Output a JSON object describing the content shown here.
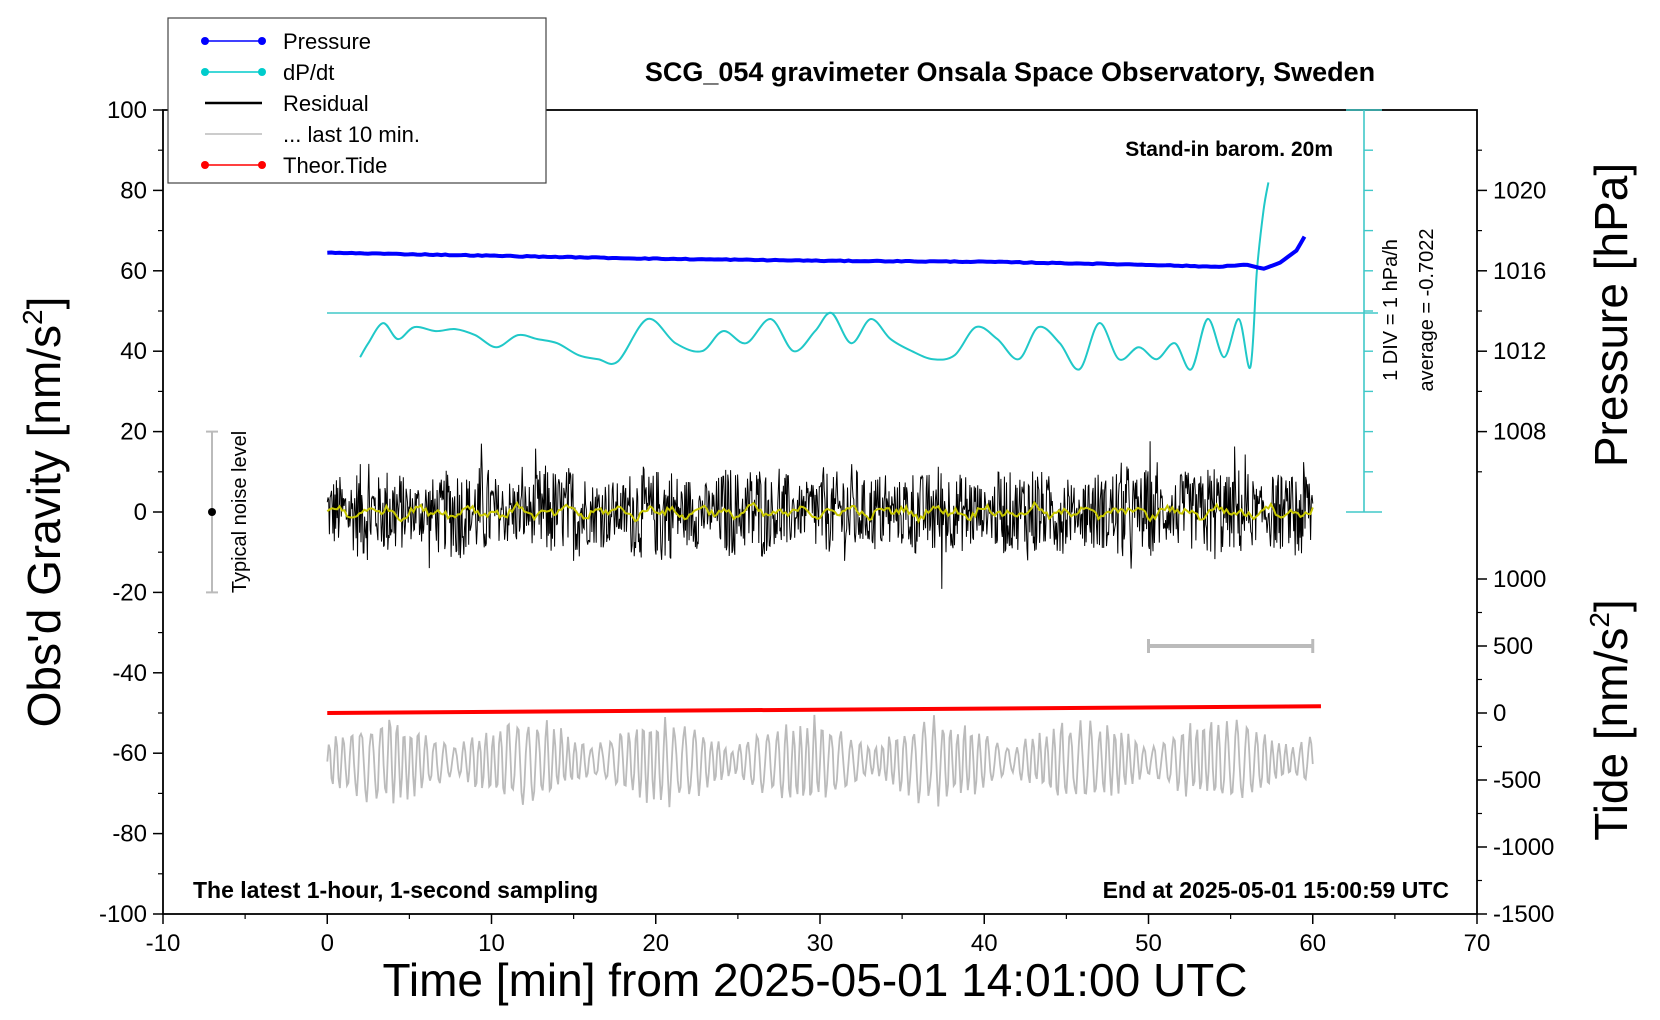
{
  "chart_data": {
    "type": "line",
    "title": "SCG_054 gravimeter Onsala Space Observatory, Sweden",
    "xlabel": "Time [min] from 2025-05-01 14:01:00 UTC",
    "xlim": [
      -10,
      70
    ],
    "x_ticks": [
      "-10",
      "0",
      "10",
      "20",
      "30",
      "40",
      "50",
      "60",
      "70"
    ],
    "left_axis": {
      "label_main": "Obs'd Gravity [nm/s",
      "label_sup": "2",
      "label_end": "]",
      "ylim": [
        -100,
        100
      ],
      "ticks": [
        "100",
        "80",
        "60",
        "40",
        "20",
        "0",
        "-20",
        "-40",
        "-60",
        "-80",
        "-100"
      ]
    },
    "pressure_axis": {
      "label": "Pressure [hPa]",
      "ticks": [
        "1020",
        "1016",
        "1012",
        "1008"
      ],
      "tick_values": [
        1020,
        1016,
        1012,
        1008
      ],
      "mapping": "pressure 1020 hPa at gravity 80, 1 hPa per 5 nm/s^2"
    },
    "tide_axis": {
      "label_main": "Tide [nm/s",
      "label_sup": "2",
      "label_end": "]",
      "ticks": [
        "1000",
        "500",
        "0",
        "-500",
        "-1000",
        "-1500"
      ],
      "tick_values": [
        1000,
        500,
        0,
        -500,
        -1000,
        -1500
      ],
      "mapping": "tide 0 at gravity -50, 1 nm/s^2 per 0.0333 grav units"
    },
    "dpdt_scale": {
      "label1": "1 DIV = 1 hPa/h",
      "label2": "average = -0.7022",
      "baseline_gravity": 50,
      "div_gravity": 10
    },
    "annotations": {
      "barometer": "Stand-in barom. 20m",
      "sampling": "The latest 1-hour, 1-second sampling",
      "end_time": "End at 2025-05-01 15:00:59 UTC",
      "noise_label": "Typical noise level",
      "noise_range": [
        -20,
        20
      ]
    },
    "legend": {
      "position": "top-left",
      "entries": [
        {
          "label": "Pressure",
          "color": "#0000ff",
          "marker": true
        },
        {
          "label": "dP/dt",
          "color": "#00cccc",
          "marker": true
        },
        {
          "label": "Residual",
          "color": "#000000",
          "marker": false
        },
        {
          "label": "... last 10 min.",
          "color": "#bbbbbb",
          "marker": false
        },
        {
          "label": "Theor.Tide",
          "color": "#ff0000",
          "marker": true
        }
      ]
    },
    "series": [
      {
        "name": "Pressure",
        "axis": "pressure_hPa",
        "color": "#0000ff",
        "x": [
          0,
          10,
          20,
          30,
          40,
          50,
          52,
          54,
          56,
          57,
          58,
          59,
          59.5
        ],
        "y": [
          1016.9,
          1016.75,
          1016.6,
          1016.5,
          1016.45,
          1016.3,
          1016.25,
          1016.2,
          1016.3,
          1016.1,
          1016.4,
          1017.0,
          1017.7
        ]
      },
      {
        "name": "dP/dt",
        "axis": "gravity_units",
        "color": "#00cccc",
        "x": [
          2,
          2.5,
          3.4,
          4.3,
          5.3,
          6.6,
          7.8,
          9,
          10.3,
          11.6,
          12.8,
          14,
          15.3,
          16.5,
          17.7,
          19.5,
          21.2,
          22.8,
          24.1,
          25.5,
          27,
          28.4,
          29.7,
          30.7,
          31.9,
          33.1,
          34.3,
          35.6,
          36.9,
          38.2,
          39.5,
          40.8,
          42.1,
          43.3,
          44.6,
          45.8,
          47,
          48.2,
          49.4,
          50.5,
          51.6,
          52.6,
          53.6,
          54.6,
          55.5,
          56.2,
          56.6,
          57,
          57.3
        ],
        "y": [
          38.5,
          42,
          47,
          43,
          46,
          45,
          45.5,
          44,
          41,
          44,
          43,
          42,
          39,
          38,
          37.5,
          48,
          42,
          40,
          45,
          42,
          48,
          40,
          45,
          49.5,
          42,
          48,
          43,
          40,
          38,
          39,
          46,
          43,
          38,
          46,
          42,
          35.5,
          47,
          38,
          41,
          38,
          42,
          35.5,
          48,
          38.5,
          48,
          36,
          60,
          75,
          82
        ]
      },
      {
        "name": "Residual",
        "axis": "gravity",
        "color": "#000000",
        "x": [
          0,
          60
        ],
        "envelope": [
          -20,
          22
        ],
        "typical_amplitude": 8
      },
      {
        "name": "Residual smoothed",
        "axis": "gravity",
        "color": "#c8c800",
        "x": [
          0,
          60
        ],
        "y_mean": 0,
        "amplitude": 2
      },
      {
        "name": "... last 10 min.",
        "axis": "gravity",
        "color": "#bbbbbb",
        "x": [
          0,
          60
        ],
        "center": -62,
        "envelope": [
          -76,
          -45
        ]
      },
      {
        "name": "Theor.Tide",
        "axis": "tide_nm_s2",
        "color": "#ff0000",
        "x": [
          0,
          60.5
        ],
        "y": [
          0,
          50
        ]
      }
    ],
    "ten_min_marker": {
      "x": [
        50,
        60
      ],
      "tide_value": 500
    }
  }
}
